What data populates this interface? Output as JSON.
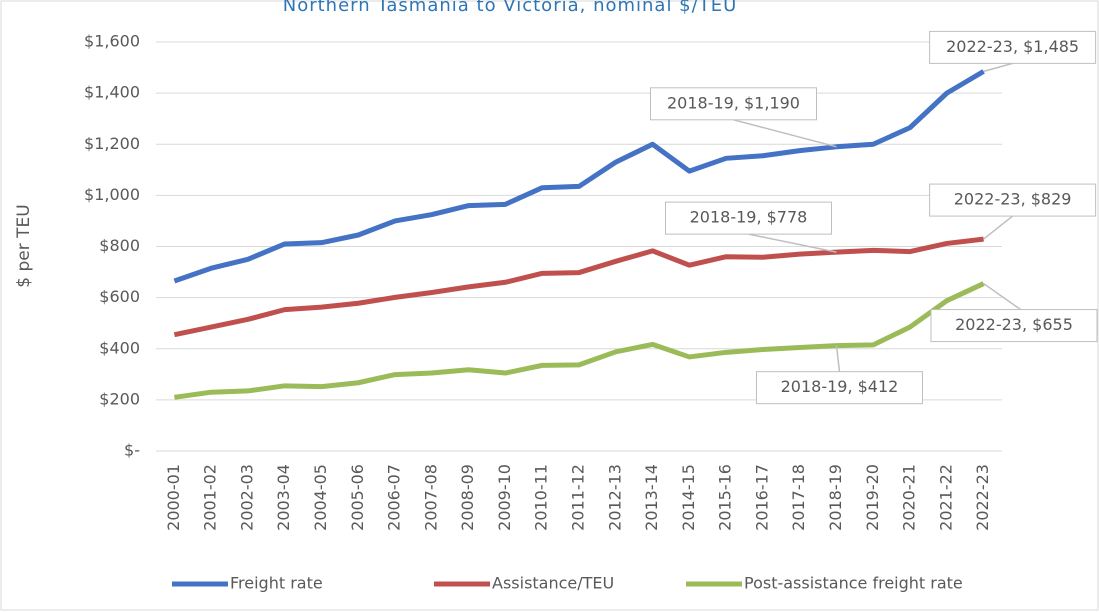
{
  "chart_data": {
    "type": "line",
    "title": "Northern Tasmania to Victoria, nominal $/TEU",
    "y_label": "$ per TEU",
    "categories": [
      "2000-01",
      "2001-02",
      "2002-03",
      "2003-04",
      "2004-05",
      "2005-06",
      "2006-07",
      "2007-08",
      "2008-09",
      "2009-10",
      "2010-11",
      "2011-12",
      "2012-13",
      "2013-14",
      "2014-15",
      "2015-16",
      "2016-17",
      "2017-18",
      "2018-19",
      "2019-20",
      "2020-21",
      "2021-22",
      "2022-23"
    ],
    "series": [
      {
        "name": "Freight rate",
        "color": "#4472c4",
        "values": [
          665,
          715,
          750,
          810,
          815,
          845,
          900,
          925,
          960,
          965,
          1030,
          1035,
          1130,
          1200,
          1095,
          1145,
          1155,
          1175,
          1190,
          1200,
          1265,
          1400,
          1485
        ],
        "value_labels": [
          null,
          null,
          null,
          null,
          null,
          null,
          null,
          null,
          null,
          null,
          null,
          null,
          null,
          null,
          null,
          null,
          null,
          null,
          "2018-19,  $1,190",
          null,
          null,
          null,
          "2022-23,  $1,485"
        ]
      },
      {
        "name": "Assistance/TEU",
        "color": "#c0504d",
        "values": [
          455,
          485,
          515,
          553,
          563,
          578,
          601,
          620,
          642,
          660,
          695,
          698,
          742,
          783,
          727,
          760,
          758,
          770,
          778,
          785,
          780,
          812,
          829
        ],
        "value_labels": [
          null,
          null,
          null,
          null,
          null,
          null,
          null,
          null,
          null,
          null,
          null,
          null,
          null,
          null,
          null,
          null,
          null,
          null,
          "2018-19,  $778",
          null,
          null,
          null,
          "2022-23,  $829"
        ]
      },
      {
        "name": "Post-assistance freight rate",
        "color": "#9bbb59",
        "values": [
          210,
          230,
          235,
          255,
          252,
          267,
          299,
          305,
          318,
          305,
          335,
          337,
          388,
          417,
          368,
          386,
          397,
          405,
          412,
          415,
          485,
          588,
          655
        ],
        "value_labels": [
          null,
          null,
          null,
          null,
          null,
          null,
          null,
          null,
          null,
          null,
          null,
          null,
          null,
          null,
          null,
          null,
          null,
          null,
          "2018-19,  $412",
          null,
          null,
          null,
          "2022-23,  $655"
        ]
      }
    ],
    "ylim": [
      0,
      1600
    ],
    "yticks": [
      {
        "value": 0,
        "label": "$-"
      },
      {
        "value": 200,
        "label": "$200"
      },
      {
        "value": 400,
        "label": "$400"
      },
      {
        "value": 600,
        "label": "$600"
      },
      {
        "value": 800,
        "label": "$800"
      },
      {
        "value": 1000,
        "label": "$1,000"
      },
      {
        "value": 1200,
        "label": "$1,200"
      },
      {
        "value": 1400,
        "label": "$1,400"
      },
      {
        "value": 1600,
        "label": "$1,600"
      }
    ],
    "grid": true,
    "legend": "bottom"
  }
}
